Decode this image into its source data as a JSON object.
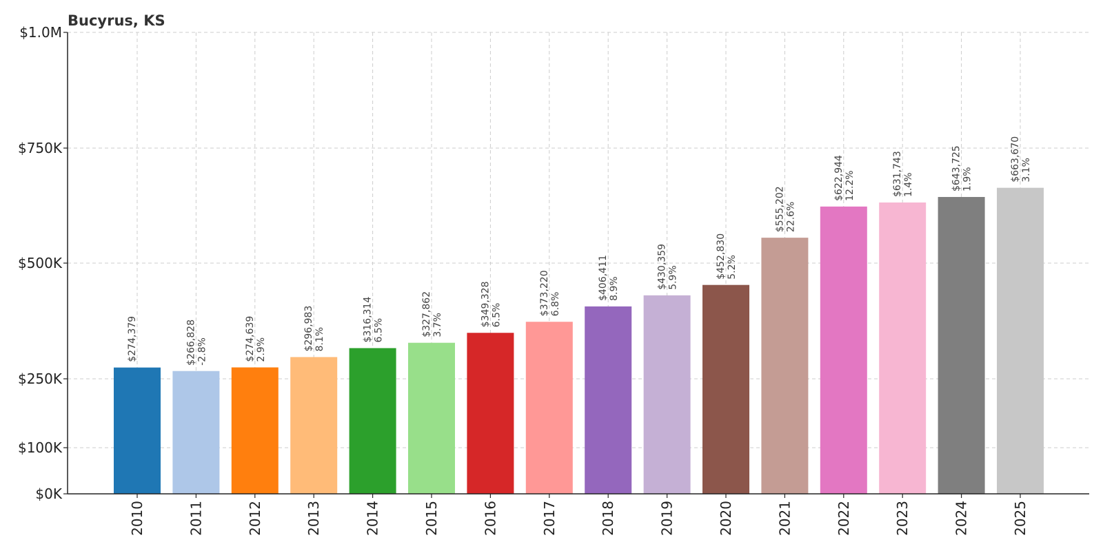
{
  "chart_data": {
    "type": "bar",
    "title": "Bucyrus, KS",
    "xlabel": "",
    "ylabel": "",
    "ylim": [
      0,
      1000000
    ],
    "grid": true,
    "categories": [
      "2010",
      "2011",
      "2012",
      "2013",
      "2014",
      "2015",
      "2016",
      "2017",
      "2018",
      "2019",
      "2020",
      "2021",
      "2022",
      "2023",
      "2024",
      "2025"
    ],
    "values": [
      274379,
      266828,
      274639,
      296983,
      316314,
      327862,
      349328,
      373220,
      406411,
      430359,
      452830,
      555202,
      622944,
      631743,
      643725,
      663670
    ],
    "value_labels": [
      "$274,379",
      "$266,828",
      "$274,639",
      "$296,983",
      "$316,314",
      "$327,862",
      "$349,328",
      "$373,220",
      "$406,411",
      "$430,359",
      "$452,830",
      "$555,202",
      "$622,944",
      "$631,743",
      "$643,725",
      "$663,670"
    ],
    "change_labels": [
      "",
      "-2.8%",
      "2.9%",
      "8.1%",
      "6.5%",
      "3.7%",
      "6.5%",
      "6.8%",
      "8.9%",
      "5.9%",
      "5.2%",
      "22.6%",
      "12.2%",
      "1.4%",
      "1.9%",
      "3.1%"
    ],
    "colors": [
      "#1f77b4",
      "#aec7e8",
      "#ff7f0e",
      "#ffbb78",
      "#2ca02c",
      "#98df8a",
      "#d62728",
      "#ff9896",
      "#9467bd",
      "#c5b0d5",
      "#8c564b",
      "#c49c94",
      "#e377c2",
      "#f7b6d2",
      "#7f7f7f",
      "#c7c7c7"
    ],
    "yticks": [
      {
        "value": 0,
        "label": "$0K"
      },
      {
        "value": 100000,
        "label": "$100K"
      },
      {
        "value": 250000,
        "label": "$250K"
      },
      {
        "value": 500000,
        "label": "$500K"
      },
      {
        "value": 750000,
        "label": "$750K"
      },
      {
        "value": 1000000,
        "label": "$1.0M"
      }
    ]
  }
}
